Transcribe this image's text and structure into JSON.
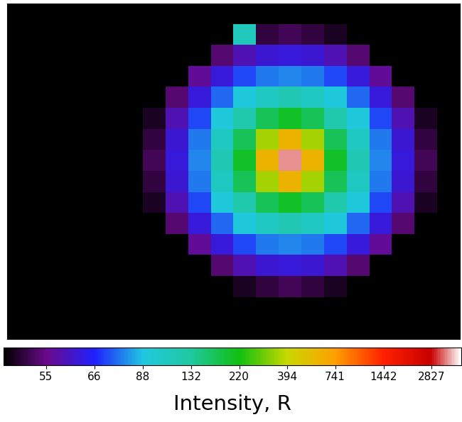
{
  "chart_data": {
    "type": "heatmap",
    "cells": [
      [
        0,
        0,
        0,
        0,
        0,
        0,
        0,
        0,
        0,
        0,
        0,
        0,
        0,
        0,
        0,
        0,
        0,
        0,
        0,
        0
      ],
      [
        0,
        0,
        0,
        0,
        0,
        0,
        0,
        0,
        0,
        0,
        110,
        52,
        53,
        52,
        51,
        0,
        0,
        0,
        0,
        0
      ],
      [
        0,
        0,
        0,
        0,
        0,
        0,
        0,
        0,
        50,
        54,
        58,
        61,
        62,
        61,
        58,
        54,
        50,
        0,
        0,
        0
      ],
      [
        0,
        0,
        0,
        0,
        0,
        0,
        0,
        50,
        56,
        62,
        70,
        76,
        78,
        76,
        70,
        62,
        56,
        50,
        0,
        0
      ],
      [
        0,
        0,
        0,
        0,
        0,
        0,
        0,
        54,
        62,
        74,
        90,
        105,
        115,
        105,
        90,
        74,
        62,
        54,
        0,
        0
      ],
      [
        0,
        0,
        0,
        0,
        0,
        0,
        51,
        58,
        70,
        90,
        120,
        170,
        200,
        170,
        120,
        90,
        70,
        58,
        51,
        0
      ],
      [
        0,
        0,
        0,
        0,
        0,
        0,
        52,
        61,
        76,
        105,
        170,
        350,
        600,
        350,
        170,
        105,
        76,
        61,
        52,
        0
      ],
      [
        0,
        0,
        0,
        0,
        0,
        0,
        53,
        62,
        78,
        115,
        200,
        600,
        3500,
        600,
        200,
        115,
        78,
        62,
        53,
        0
      ],
      [
        0,
        0,
        0,
        0,
        0,
        0,
        52,
        61,
        76,
        105,
        170,
        350,
        600,
        350,
        170,
        105,
        76,
        61,
        52,
        0
      ],
      [
        0,
        0,
        0,
        0,
        0,
        0,
        51,
        58,
        70,
        90,
        120,
        170,
        200,
        170,
        120,
        90,
        70,
        58,
        51,
        0
      ],
      [
        0,
        0,
        0,
        0,
        0,
        0,
        0,
        54,
        62,
        74,
        90,
        105,
        115,
        105,
        90,
        74,
        62,
        54,
        0,
        0
      ],
      [
        0,
        0,
        0,
        0,
        0,
        0,
        0,
        50,
        56,
        62,
        70,
        76,
        78,
        76,
        70,
        62,
        56,
        50,
        0,
        0
      ],
      [
        0,
        0,
        0,
        0,
        0,
        0,
        0,
        0,
        50,
        54,
        58,
        61,
        62,
        61,
        58,
        54,
        50,
        0,
        0,
        0
      ],
      [
        0,
        0,
        0,
        0,
        0,
        0,
        0,
        0,
        0,
        0,
        51,
        52,
        53,
        52,
        51,
        0,
        0,
        0,
        0,
        0
      ],
      [
        0,
        0,
        0,
        0,
        0,
        0,
        0,
        0,
        0,
        0,
        0,
        0,
        0,
        0,
        0,
        0,
        0,
        0,
        0,
        0
      ],
      [
        0,
        0,
        0,
        0,
        0,
        0,
        0,
        0,
        0,
        0,
        0,
        0,
        0,
        0,
        0,
        0,
        0,
        0,
        0,
        0
      ]
    ],
    "colorbar_range": [
      50,
      4280
    ],
    "colorbar_ticks": [
      55,
      66,
      88,
      132,
      220,
      394,
      741,
      1442,
      2827
    ],
    "colorbar_label": "Intensity, R",
    "tick_labels": false
  }
}
